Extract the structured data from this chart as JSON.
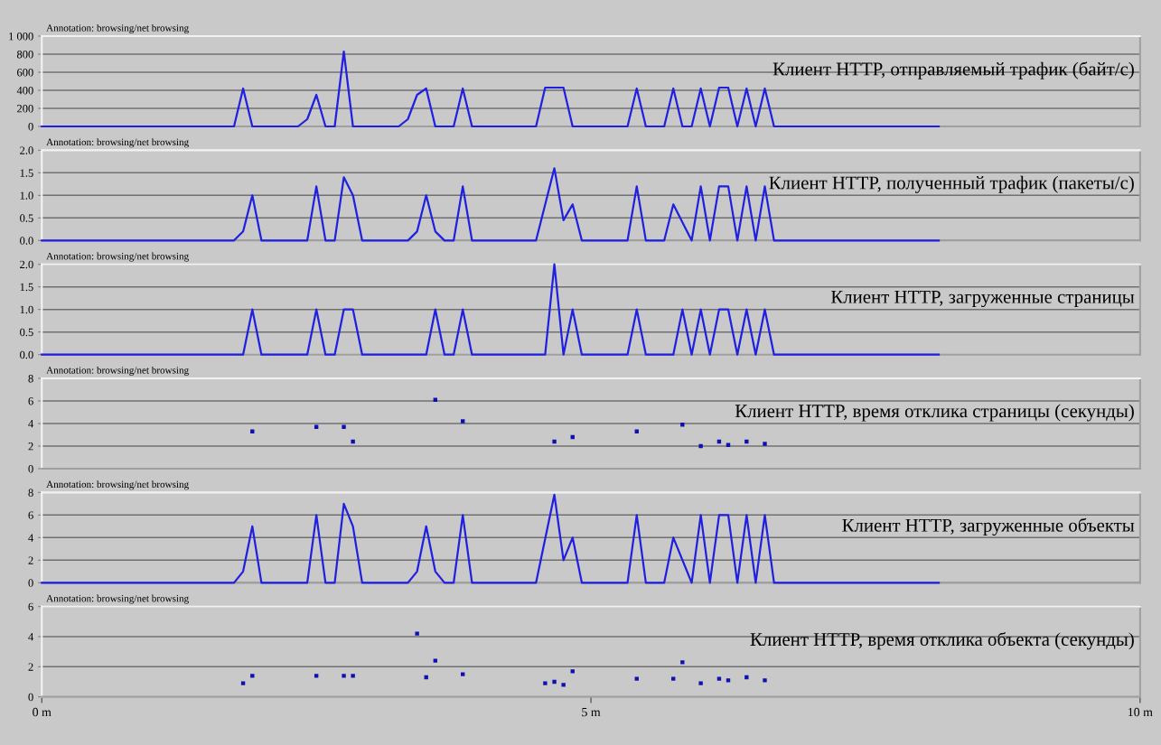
{
  "chart_data": [
    {
      "type": "line",
      "title": "Клиент HTTP, отправляемый трафик (байт/с)",
      "annotations": [
        "Annotation: browsing/net browsing"
      ],
      "xlim": [
        0,
        10
      ],
      "ylim": [
        0,
        1000
      ],
      "yticks": [
        0,
        200,
        400,
        600,
        800,
        {
          "value": 1000,
          "label": "1 000"
        }
      ],
      "grid": "y",
      "tick_labels": "y",
      "series": [
        {
          "color": "#2020e0",
          "x": [
            0,
            1.75,
            1.833,
            1.917,
            2.333,
            2.417,
            2.5,
            2.583,
            2.667,
            2.75,
            2.833,
            3.25,
            3.333,
            3.417,
            3.5,
            3.583,
            3.75,
            3.833,
            3.917,
            4.5,
            4.583,
            4.75,
            4.833,
            5.333,
            5.417,
            5.5,
            5.667,
            5.75,
            5.833,
            5.917,
            6,
            6.083,
            6.167,
            6.25,
            6.333,
            6.417,
            6.5,
            6.583,
            6.667,
            8.167
          ],
          "values": [
            0,
            0,
            420,
            0,
            0,
            80,
            350,
            0,
            0,
            830,
            0,
            0,
            80,
            350,
            420,
            0,
            0,
            420,
            0,
            0,
            430,
            430,
            0,
            0,
            420,
            0,
            0,
            420,
            0,
            0,
            420,
            0,
            430,
            430,
            0,
            420,
            0,
            420,
            0,
            0
          ]
        }
      ]
    },
    {
      "type": "line",
      "title": "Клиент HTTP, полученный трафик (пакеты/с)",
      "annotations": [
        "Annotation: browsing/net browsing"
      ],
      "xlim": [
        0,
        10
      ],
      "ylim": [
        0,
        2
      ],
      "yticks": [
        {
          "value": 0,
          "label": "0.0"
        },
        {
          "value": 0.5,
          "label": "0.5"
        },
        {
          "value": 1,
          "label": "1.0"
        },
        {
          "value": 1.5,
          "label": "1.5"
        },
        {
          "value": 2,
          "label": "2.0"
        }
      ],
      "grid": "y",
      "tick_labels": "y",
      "series": [
        {
          "color": "#2020e0",
          "x": [
            0,
            1.75,
            1.833,
            1.917,
            2,
            2.417,
            2.5,
            2.583,
            2.667,
            2.75,
            2.833,
            2.917,
            3.333,
            3.417,
            3.5,
            3.583,
            3.667,
            3.75,
            3.833,
            3.917,
            4.5,
            4.667,
            4.75,
            4.833,
            4.917,
            5.333,
            5.417,
            5.5,
            5.667,
            5.75,
            5.917,
            6,
            6.083,
            6.167,
            6.25,
            6.333,
            6.417,
            6.5,
            6.583,
            6.667,
            8.167
          ],
          "values": [
            0,
            0,
            0.2,
            1.0,
            0,
            0,
            1.2,
            0,
            0,
            1.4,
            1.0,
            0,
            0,
            0.2,
            1.0,
            0.2,
            0,
            0,
            1.2,
            0,
            0,
            1.6,
            0.45,
            0.8,
            0,
            0,
            1.2,
            0,
            0,
            0.8,
            0,
            1.2,
            0,
            1.2,
            1.2,
            0,
            1.2,
            0,
            1.2,
            0,
            0
          ]
        }
      ]
    },
    {
      "type": "line",
      "title": "Клиент HTTP, загруженные страницы",
      "annotations": [
        "Annotation: browsing/net browsing"
      ],
      "xlim": [
        0,
        10
      ],
      "ylim": [
        0,
        2
      ],
      "yticks": [
        {
          "value": 0,
          "label": "0.0"
        },
        {
          "value": 0.5,
          "label": "0.5"
        },
        {
          "value": 1,
          "label": "1.0"
        },
        {
          "value": 1.5,
          "label": "1.5"
        },
        {
          "value": 2,
          "label": "2.0"
        }
      ],
      "grid": "y",
      "tick_labels": "y",
      "series": [
        {
          "color": "#2020e0",
          "x": [
            0,
            1.833,
            1.917,
            2,
            2.417,
            2.5,
            2.583,
            2.667,
            2.75,
            2.833,
            2.917,
            3.5,
            3.583,
            3.667,
            3.75,
            3.833,
            3.917,
            4.583,
            4.667,
            4.75,
            4.833,
            4.917,
            5.333,
            5.417,
            5.5,
            5.75,
            5.833,
            5.917,
            6,
            6.083,
            6.167,
            6.25,
            6.333,
            6.417,
            6.5,
            6.583,
            6.667,
            8.167
          ],
          "values": [
            0,
            0,
            1,
            0,
            0,
            1,
            0,
            0,
            1,
            1,
            0,
            0,
            1,
            0,
            0,
            1,
            0,
            0,
            2,
            0,
            1,
            0,
            0,
            1,
            0,
            0,
            1,
            0,
            1,
            0,
            1,
            1,
            0,
            1,
            0,
            1,
            0,
            0
          ]
        }
      ]
    },
    {
      "type": "scatter",
      "title": "Клиент HTTP, время отклика страницы (секунды)",
      "annotations": [
        "Annotation: browsing/net browsing"
      ],
      "xlim": [
        0,
        10
      ],
      "ylim": [
        0,
        8
      ],
      "yticks": [
        0,
        2,
        4,
        6,
        8
      ],
      "grid": "y",
      "tick_labels": "y",
      "marker": "square",
      "series": [
        {
          "color": "#1010b0",
          "x": [
            1.917,
            2.5,
            2.75,
            2.833,
            3.583,
            3.833,
            4.667,
            4.833,
            5.417,
            5.833,
            6,
            6.167,
            6.25,
            6.417,
            6.583
          ],
          "values": [
            3.3,
            3.7,
            3.7,
            2.4,
            6.1,
            4.2,
            2.4,
            2.8,
            3.3,
            3.9,
            2.0,
            2.4,
            2.1,
            2.4,
            2.2
          ]
        }
      ]
    },
    {
      "type": "line",
      "title": "Клиент HTTP, загруженные объекты",
      "annotations": [
        "Annotation: browsing/net browsing"
      ],
      "xlim": [
        0,
        10
      ],
      "ylim": [
        0,
        8
      ],
      "yticks": [
        0,
        2,
        4,
        6,
        8
      ],
      "grid": "y",
      "tick_labels": "y",
      "series": [
        {
          "color": "#2020e0",
          "x": [
            0,
            1.75,
            1.833,
            1.917,
            2,
            2.417,
            2.5,
            2.583,
            2.667,
            2.75,
            2.833,
            2.917,
            3.333,
            3.417,
            3.5,
            3.583,
            3.667,
            3.75,
            3.833,
            3.917,
            4.5,
            4.667,
            4.75,
            4.833,
            4.917,
            5.333,
            5.417,
            5.5,
            5.667,
            5.75,
            5.917,
            6,
            6.083,
            6.167,
            6.25,
            6.333,
            6.417,
            6.5,
            6.583,
            6.667,
            8.167
          ],
          "values": [
            0,
            0,
            1,
            5,
            0,
            0,
            6,
            0,
            0,
            7,
            5,
            0,
            0,
            1,
            5,
            1,
            0,
            0,
            6,
            0,
            0,
            7.8,
            2,
            4,
            0,
            0,
            6,
            0,
            0,
            4,
            0,
            6,
            0,
            6,
            6,
            0,
            6,
            0,
            6,
            0,
            0
          ]
        }
      ]
    },
    {
      "type": "scatter",
      "title": "Клиент HTTP, время отклика объекта (секунды)",
      "annotations": [
        "Annotation: browsing/net browsing"
      ],
      "xlim": [
        0,
        10
      ],
      "xticks": [
        {
          "value": 0,
          "label": "0 m"
        },
        {
          "value": 5,
          "label": "5 m"
        },
        {
          "value": 10,
          "label": "10 m"
        }
      ],
      "ylim": [
        0,
        6
      ],
      "yticks": [
        0,
        2,
        4,
        6
      ],
      "grid": "y",
      "marker": "square",
      "series": [
        {
          "color": "#1010b0",
          "x": [
            1.833,
            1.917,
            2.5,
            2.75,
            2.833,
            3.417,
            3.5,
            3.583,
            3.833,
            4.583,
            4.667,
            4.75,
            4.833,
            5.417,
            5.75,
            5.833,
            6,
            6.167,
            6.25,
            6.417,
            6.583
          ],
          "values": [
            0.9,
            1.4,
            1.4,
            1.4,
            1.4,
            4.2,
            1.3,
            2.4,
            1.5,
            0.9,
            1.0,
            0.8,
            1.7,
            1.2,
            1.2,
            2.3,
            0.9,
            1.2,
            1.1,
            1.3,
            1.1
          ]
        }
      ]
    }
  ]
}
